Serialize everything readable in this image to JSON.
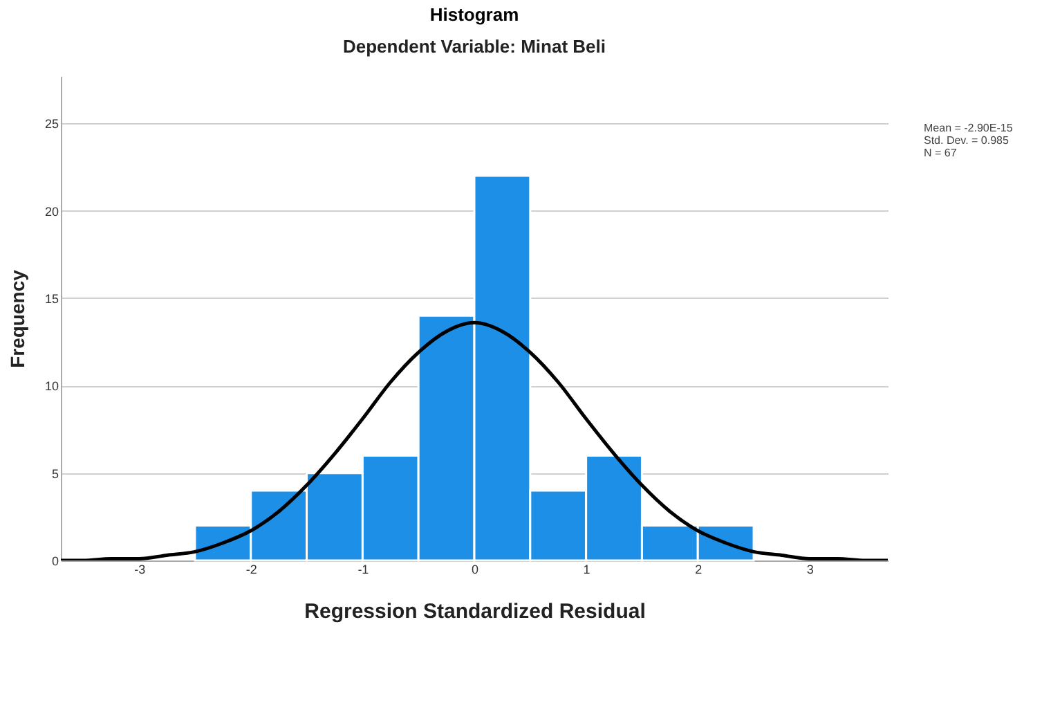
{
  "chart_data": {
    "type": "histogram",
    "title": "Histogram",
    "subtitle": "Dependent Variable: Minat Beli",
    "xlabel": "Regression Standardized Residual",
    "ylabel": "Frequency",
    "bins": [
      -2.5,
      -2,
      -1.5,
      -1,
      -0.5,
      0,
      0.5,
      1,
      1.5,
      2,
      2.5
    ],
    "values": [
      2,
      4,
      5,
      6,
      14,
      22,
      4,
      6,
      2,
      2
    ],
    "color": "#1e8fe6",
    "series": [
      {
        "type": "line",
        "color": "#000000",
        "x": [
          -3.7,
          -3.5,
          -3.25,
          -3,
          -2.75,
          -2.5,
          -2.25,
          -2,
          -1.75,
          -1.5,
          -1.25,
          -1,
          -0.75,
          -0.5,
          -0.25,
          0,
          0.25,
          0.5,
          0.75,
          1,
          1.25,
          1.5,
          1.75,
          2,
          2.25,
          2.5,
          2.75,
          3,
          3.25,
          3.5,
          3.7
        ],
        "values": [
          0,
          0,
          0.1,
          0.1,
          0.3,
          0.5,
          1,
          1.7,
          2.8,
          4.3,
          6.1,
          8.1,
          10.2,
          11.9,
          13.1,
          13.6,
          13.1,
          11.9,
          10.2,
          8.1,
          6.1,
          4.3,
          2.8,
          1.7,
          1,
          0.5,
          0.3,
          0.1,
          0.1,
          0,
          0
        ]
      }
    ],
    "annotations": [
      "Mean = -2.90E-15",
      "Std. Dev. = 0.985",
      "N = 67"
    ],
    "xlim": [
      -3.7,
      3.7
    ],
    "xticks": [
      -3,
      -2,
      -1,
      0,
      1,
      2,
      3
    ],
    "ylim": [
      0,
      27.7
    ],
    "yticks": [
      0,
      5,
      10,
      15,
      20,
      25
    ],
    "grid": "y"
  }
}
